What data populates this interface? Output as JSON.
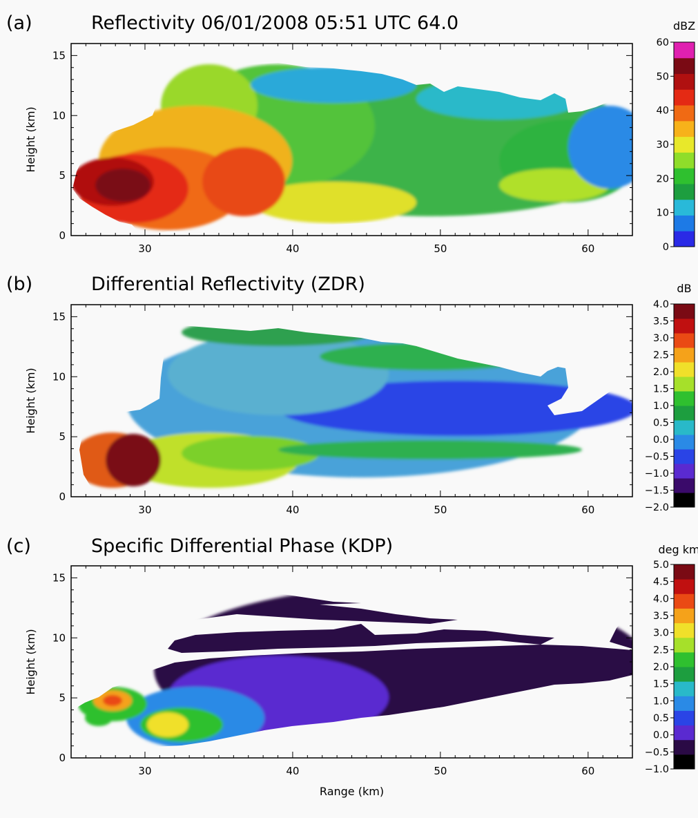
{
  "chart_data": [
    {
      "type": "heatmap",
      "panel_label": "(a)",
      "title": "Reflectivity  06/01/2008  05:51 UTC 64.0",
      "xlabel": "",
      "ylabel": "Height (km)",
      "xlim": [
        25,
        63
      ],
      "ylim": [
        0,
        16
      ],
      "x_ticks": [
        30,
        40,
        50,
        60
      ],
      "y_ticks": [
        0,
        5,
        10,
        15
      ],
      "colorbar": {
        "unit": "dBZ",
        "range": [
          0,
          60
        ],
        "ticks": [
          "60",
          "50",
          "40",
          "30",
          "20",
          "10",
          "0"
        ],
        "colors": [
          "#2a2ae6",
          "#1d7ae6",
          "#29b9d9",
          "#1d9e3f",
          "#2fc02f",
          "#8fdd2a",
          "#e8e82a",
          "#f7b21a",
          "#f06a14",
          "#e42a14",
          "#b01010",
          "#7a0a14",
          "#e020b0"
        ]
      },
      "features": {
        "echo_top_km": 14.5,
        "core_region": "28-40 km range, below 7 km",
        "core_max_dBZ": 55
      }
    },
    {
      "type": "heatmap",
      "panel_label": "(b)",
      "title": "Differential Reflectivity (ZDR)",
      "xlabel": "",
      "ylabel": "Height (km)",
      "xlim": [
        25,
        63
      ],
      "ylim": [
        0,
        16
      ],
      "x_ticks": [
        30,
        40,
        50,
        60
      ],
      "y_ticks": [
        0,
        5,
        10,
        15
      ],
      "colorbar": {
        "unit": "dB",
        "range": [
          -2.0,
          4.0
        ],
        "ticks": [
          "4.0",
          "3.5",
          "3.0",
          "2.5",
          "2.0",
          "1.5",
          "1.0",
          "0.5",
          "0.0",
          "−0.5",
          "−1.0",
          "−1.5",
          "−2.0"
        ],
        "colors": [
          "#000000",
          "#3a0a6a",
          "#5a2ad0",
          "#2a44e6",
          "#2a8ae6",
          "#29b9c9",
          "#1d9e3f",
          "#2fc02f",
          "#a6e02a",
          "#f0e02a",
          "#f5a21a",
          "#ea4a14",
          "#c01010",
          "#7a0a14"
        ]
      },
      "features": {
        "high_zdr_region": "26-31 km range, 2-6 km height",
        "high_zdr_max_dB": 4.0
      }
    },
    {
      "type": "heatmap",
      "panel_label": "(c)",
      "title": "Specific Differential Phase (KDP)",
      "xlabel": "Range (km)",
      "ylabel": "Height (km)",
      "xlim": [
        25,
        63
      ],
      "ylim": [
        0,
        16
      ],
      "x_ticks": [
        30,
        40,
        50,
        60
      ],
      "y_ticks": [
        0,
        5,
        10,
        15
      ],
      "colorbar": {
        "unit": "deg km⁻¹",
        "range": [
          -1.0,
          5.0
        ],
        "ticks": [
          "5.0",
          "4.5",
          "4.0",
          "3.5",
          "3.0",
          "2.5",
          "2.0",
          "1.5",
          "1.0",
          "0.5",
          "0.0",
          "−0.5",
          "−1.0"
        ],
        "colors": [
          "#000000",
          "#2a0a45",
          "#5a2ad0",
          "#2a44e6",
          "#2a8ae6",
          "#29b9c9",
          "#1d9e3f",
          "#2fc02f",
          "#a6e02a",
          "#f0e02a",
          "#f5a21a",
          "#ea4a14",
          "#c01010",
          "#7a0a14"
        ]
      },
      "features": {
        "high_kdp_region": "26-33 km range, 2-6 km height",
        "high_kdp_max_deg_per_km": 3.5
      }
    }
  ]
}
